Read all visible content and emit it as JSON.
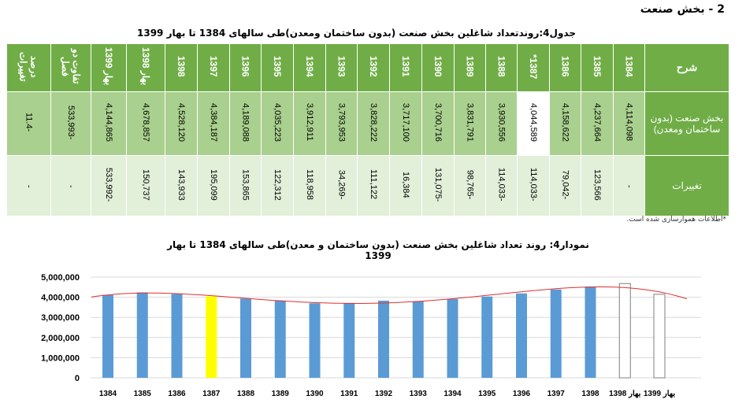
{
  "section_title": "2 - بخش صنعت",
  "table": {
    "title": "جدول4:روندتعداد شاغلین بخش صنعت (بدون ساختمان ومعدن)طی سالهای 1384 تا بهار 1399",
    "header_label": "شرح",
    "columns": [
      "1384",
      "1385",
      "1386",
      "1387*",
      "1388",
      "1389",
      "1390",
      "1391",
      "1392",
      "1393",
      "1394",
      "1395",
      "1396",
      "1397",
      "1398",
      "بهار 1398",
      "بهار 1399",
      "تفاوت دو فصل",
      "درصد تغییرات"
    ],
    "rows": [
      {
        "label": "بخش صنعت (بدون ساختمان ومعدن)",
        "values": [
          "4,114,098",
          "4,237,664",
          "4,158,622",
          "4,044,589",
          "3,930,556",
          "3,831,791",
          "3,700,716",
          "3,717,100",
          "3,828,222",
          "3,793,953",
          "3,912,911",
          "4,035,223",
          "4,189,088",
          "4,384,187",
          "4,528,120",
          "4,678,857",
          "4,144,865",
          "-533,993",
          "-11.4"
        ]
      },
      {
        "label": "تغییرات",
        "values": [
          "-",
          "123,566",
          "-79,042",
          "-114,033",
          "-114,033",
          "-98,765",
          "-131,075",
          "16,384",
          "111,122",
          "-34,269",
          "118,958",
          "122,312",
          "153,865",
          "195,099",
          "143,933",
          "150,737",
          "-533,992",
          "-",
          "-"
        ]
      }
    ],
    "note": "*اطلاعات هموارسازی شده است."
  },
  "chart_data": {
    "type": "bar",
    "title": "نمودار4: روند تعداد شاغلین بخش صنعت (بدون ساختمان و معدن)طی سالهای 1384 تا بهار 1399",
    "categories": [
      "1384",
      "1385",
      "1386",
      "1387",
      "1388",
      "1389",
      "1390",
      "1391",
      "1392",
      "1393",
      "1394",
      "1395",
      "1396",
      "1397",
      "1398",
      "بهار 1398",
      "بهار 1399"
    ],
    "values": [
      4114098,
      4237664,
      4158622,
      4044589,
      3930556,
      3831791,
      3700716,
      3717100,
      3828222,
      3793953,
      3912911,
      4035223,
      4189088,
      4384187,
      4528120,
      4678857,
      4144865
    ],
    "yticks": [
      "0",
      "1,000,000",
      "2,000,000",
      "3,000,000",
      "4,000,000",
      "5,000,000"
    ],
    "ylim": [
      0,
      5000000
    ],
    "grid": true,
    "trendline": "polynomial",
    "colors": {
      "default": "#5B9BD5",
      "highlight": "#FFFF00",
      "seasonal": "#FFFFFF",
      "trend": "#E03030"
    },
    "highlight_category": "1387"
  }
}
